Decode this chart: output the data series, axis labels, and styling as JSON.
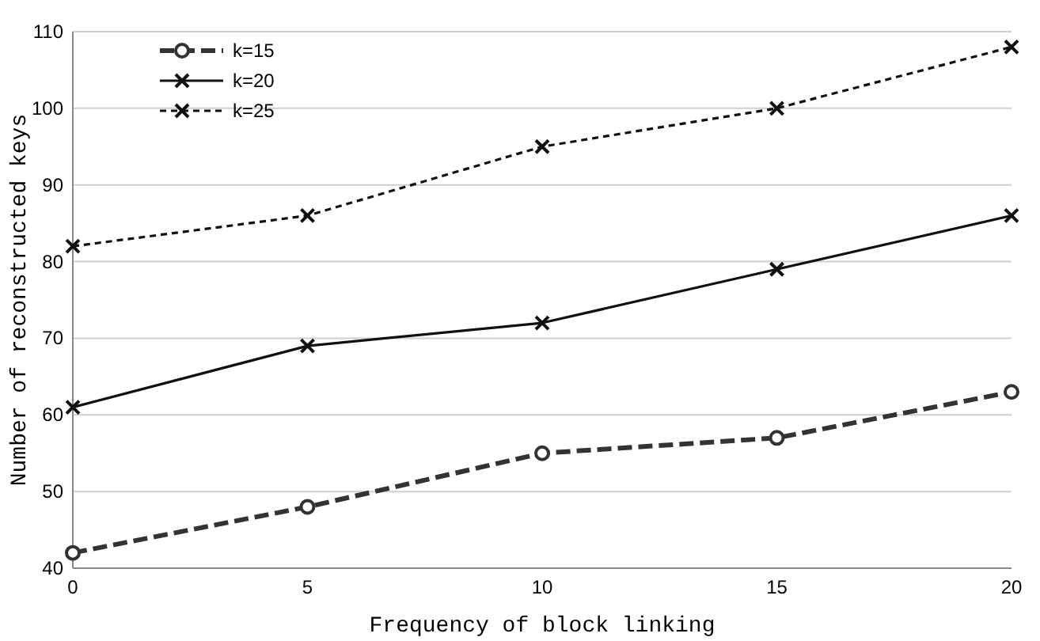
{
  "chart_data": {
    "type": "line",
    "xlabel": "Frequency of block linking",
    "ylabel": "Number of reconstructed keys",
    "x": [
      0,
      5,
      10,
      15,
      20
    ],
    "xlim": [
      0,
      20
    ],
    "xticks": [
      0,
      5,
      10,
      15,
      20
    ],
    "ylim": [
      40,
      110
    ],
    "yticks": [
      40,
      50,
      60,
      70,
      80,
      90,
      100,
      110
    ],
    "grid": "y",
    "legend": "top left",
    "series": [
      {
        "name": "k=15",
        "color": "#333333",
        "values": [
          42,
          48,
          55,
          57,
          63
        ],
        "marker": "circle",
        "line_style": "dashed"
      },
      {
        "name": "k=20",
        "color": "#111111",
        "values": [
          61,
          69,
          72,
          79,
          86
        ],
        "marker": "cross",
        "line_style": "solid"
      },
      {
        "name": "k=25",
        "color": "#111111",
        "values": [
          82,
          86,
          95,
          100,
          108
        ],
        "marker": "cross",
        "line_style": "dotted"
      }
    ]
  }
}
